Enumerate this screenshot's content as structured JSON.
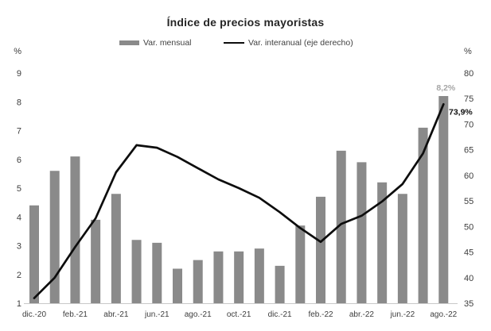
{
  "title": "Índice de precios mayoristas",
  "legend": {
    "monthly_label": "Var. mensual",
    "yoy_label": "Var. interanual (eje derecho)"
  },
  "left_axis": {
    "unit": "%",
    "ticks": [
      9,
      8,
      7,
      6,
      5,
      4,
      3,
      2,
      1
    ]
  },
  "right_axis": {
    "unit": "%",
    "ticks": [
      80,
      75,
      70,
      65,
      60,
      55,
      50,
      45,
      40,
      35
    ]
  },
  "colors": {
    "bar": "#8a8a8a",
    "line": "#0d0d0d",
    "tick_text": "#3d3d3d",
    "axis_line": "#c9c9c9",
    "bar_annotation": "#a6a6a6",
    "line_annotation": "#111111",
    "title_text": "#262626"
  },
  "chart_data": {
    "type": "bar+line",
    "title": "Índice de precios mayoristas",
    "grid": false,
    "legend_position": "top",
    "categories": [
      "dic.-20",
      "ene.-21",
      "feb.-21",
      "mar.-21",
      "abr.-21",
      "may.-21",
      "jun.-21",
      "jul.-21",
      "ago.-21",
      "sep.-21",
      "oct.-21",
      "nov.-21",
      "dic.-21",
      "ene.-22",
      "feb.-22",
      "mar.-22",
      "abr.-22",
      "may.-22",
      "jun.-22",
      "jul.-22",
      "ago.-22"
    ],
    "x_tick_labels": [
      "dic.-20",
      "feb.-21",
      "abr.-21",
      "jun.-21",
      "ago.-21",
      "oct.-21",
      "dic.-21",
      "feb.-22",
      "abr.-22",
      "jun.-22",
      "ago.-22"
    ],
    "ylim_left": [
      1,
      9
    ],
    "ylim_right": [
      35,
      80
    ],
    "series": [
      {
        "name": "Var. mensual",
        "type": "bar",
        "axis": "left",
        "values": [
          4.4,
          5.6,
          6.1,
          3.9,
          4.8,
          3.2,
          3.1,
          2.2,
          2.5,
          2.8,
          2.8,
          2.9,
          2.3,
          3.7,
          4.7,
          6.3,
          5.9,
          5.2,
          4.8,
          7.1,
          8.2
        ]
      },
      {
        "name": "Var. interanual (eje derecho)",
        "type": "line",
        "axis": "right",
        "values": [
          36.0,
          40.0,
          46.0,
          51.6,
          60.6,
          65.9,
          65.4,
          63.6,
          61.4,
          59.2,
          57.5,
          55.6,
          52.8,
          49.7,
          47.0,
          50.5,
          52.1,
          54.9,
          58.3,
          64.3,
          73.9
        ]
      }
    ],
    "annotations": [
      {
        "text": "8,2%",
        "series": "Var. mensual",
        "category": "ago.-22"
      },
      {
        "text": "73,9%",
        "series": "Var. interanual",
        "category": "ago.-22"
      }
    ]
  }
}
